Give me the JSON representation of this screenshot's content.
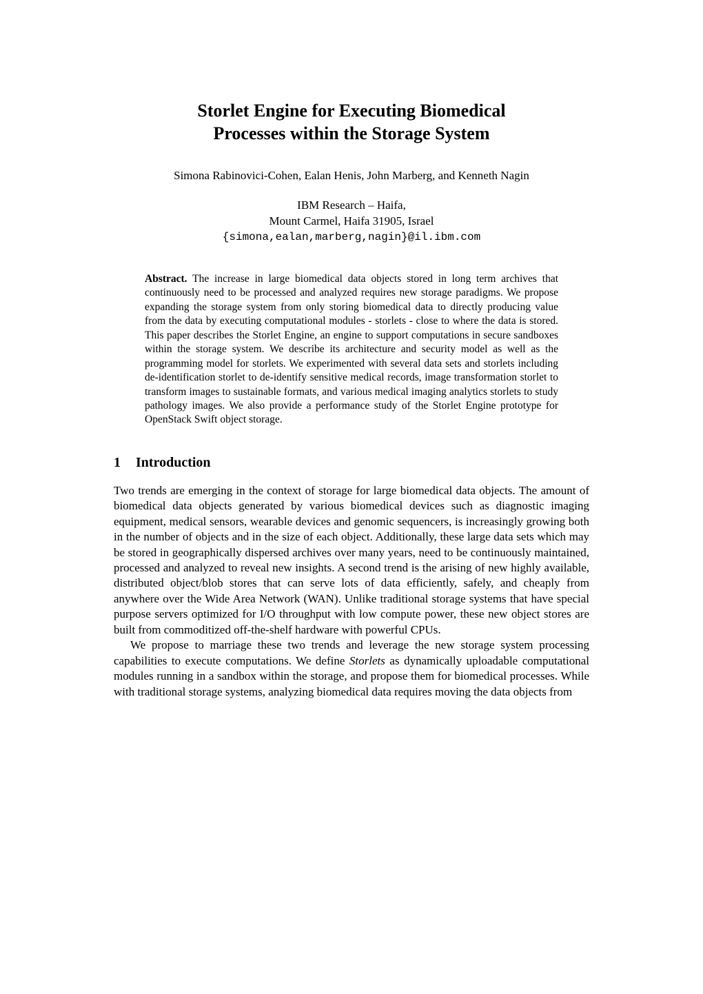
{
  "title_line1": "Storlet Engine for Executing Biomedical",
  "title_line2": "Processes within the Storage System",
  "authors": "Simona Rabinovici-Cohen, Ealan Henis, John Marberg, and Kenneth Nagin",
  "affiliation_line1": "IBM Research – Haifa,",
  "affiliation_line2": "Mount Carmel, Haifa 31905, Israel",
  "email": "{simona,ealan,marberg,nagin}@il.ibm.com",
  "abstract_label": "Abstract.",
  "abstract_text": " The increase in large biomedical data objects stored in long term archives that continuously need to be processed and analyzed requires new storage paradigms. We propose expanding the storage system from only storing biomedical data to directly producing value from the data by executing computational modules - storlets - close to where the data is stored. This paper describes the Storlet Engine, an engine to support computations in secure sandboxes within the storage system. We describe its architecture and security model as well as the programming model for storlets. We experimented with several data sets and storlets including de-identification storlet to de-identify sensitive medical records, image transformation storlet to transform images to sustainable formats, and various medical imaging analytics storlets to study pathology images. We also provide a performance study of the Storlet Engine prototype for OpenStack Swift object storage.",
  "section_number": "1",
  "section_title": "Introduction",
  "para1": "Two trends are emerging in the context of storage for large biomedical data objects. The amount of biomedical data objects generated by various biomedical devices such as diagnostic imaging equipment, medical sensors, wearable devices and genomic sequencers, is increasingly growing both in the number of objects and in the size of each object. Additionally, these large data sets which may be stored in geographically dispersed archives over many years, need to be continuously maintained, processed and analyzed to reveal new insights. A second trend is the arising of new highly available, distributed object/blob stores that can serve lots of data efficiently, safely, and cheaply from anywhere over the Wide Area Network (WAN). Unlike traditional storage systems that have special purpose servers optimized for I/O throughput with low compute power, these new object stores are built from commoditized off-the-shelf hardware with powerful CPUs.",
  "para2_a": "We propose to marriage these two trends and leverage the new storage system processing capabilities to execute computations. We define ",
  "para2_italic": "Storlets",
  "para2_b": " as dynamically uploadable computational modules running in a sandbox within the storage, and propose them for biomedical processes. While with traditional storage systems, analyzing biomedical data requires moving the data objects from"
}
